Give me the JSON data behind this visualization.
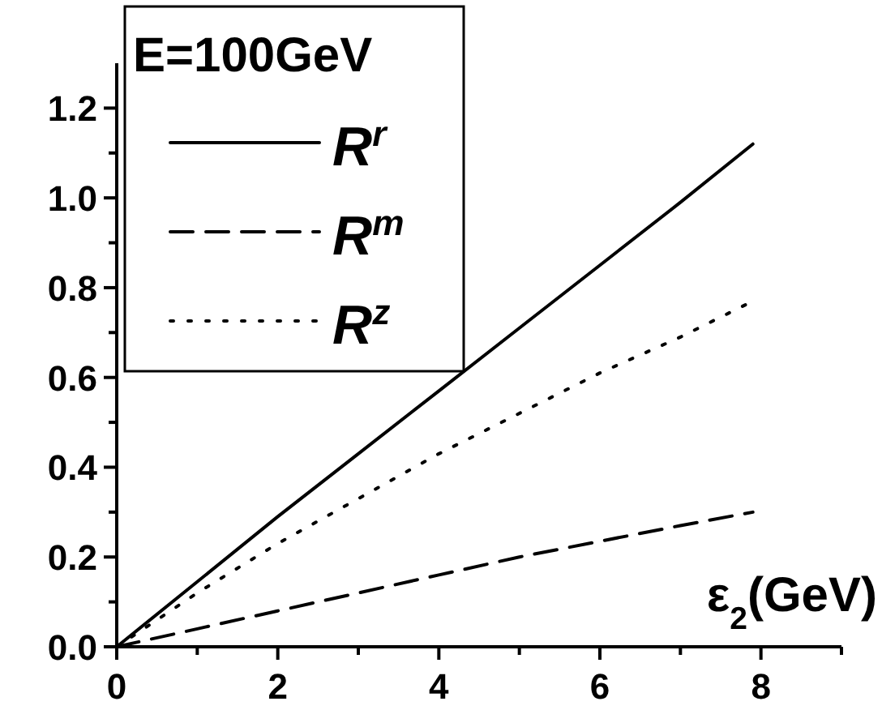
{
  "chart_data": {
    "type": "line",
    "xlabel": "ε$_{2}$(GeV)",
    "legend_title": "E=100GeV",
    "legend": "top left",
    "xlim": [
      0,
      9
    ],
    "ylim": [
      0,
      1.3
    ],
    "xticks": [
      0,
      2,
      4,
      6,
      8
    ],
    "yticks": [
      {
        "value": 0,
        "label": "0.0"
      },
      {
        "value": 0.2,
        "label": "0.2"
      },
      {
        "value": 0.4,
        "label": "0.4"
      },
      {
        "value": 0.6,
        "label": "0.6"
      },
      {
        "value": 0.8,
        "label": "0.8"
      },
      {
        "value": 1,
        "label": "1.0"
      },
      {
        "value": 1.2,
        "label": "1.2"
      }
    ],
    "x": [
      0,
      1,
      2,
      3,
      4,
      5,
      6,
      7,
      7.9
    ],
    "series": [
      {
        "name": "R$^{r}$",
        "color": "#000000",
        "line_style": "solid",
        "values": [
          0,
          0.145,
          0.29,
          0.43,
          0.57,
          0.71,
          0.85,
          0.99,
          1.12
        ]
      },
      {
        "name": "R$^{m}$",
        "color": "#000000",
        "line_style": "dashed",
        "values": [
          0,
          0.04,
          0.08,
          0.12,
          0.16,
          0.2,
          0.235,
          0.27,
          0.3
        ]
      },
      {
        "name": "R$^{z}$",
        "color": "#000000",
        "line_style": "dotted",
        "values": [
          0,
          0.12,
          0.23,
          0.33,
          0.43,
          0.52,
          0.61,
          0.69,
          0.77
        ]
      }
    ]
  }
}
